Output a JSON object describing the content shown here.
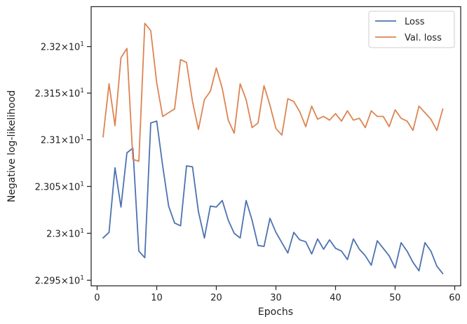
{
  "chart_data": {
    "type": "line",
    "xlabel": "Epochs",
    "ylabel": "Negative log-likelihood",
    "xlim": [
      -1,
      61
    ],
    "ylim": [
      2.2944,
      2.3243
    ],
    "x_ticks": [
      0,
      10,
      20,
      30,
      40,
      50,
      60
    ],
    "x_tick_labels": [
      "0",
      "10",
      "20",
      "30",
      "40",
      "50",
      "60"
    ],
    "y_ticks": [
      2.295,
      2.3,
      2.305,
      2.31,
      2.315,
      2.32
    ],
    "y_tick_labels": [
      {
        "mantissa": "2.295",
        "base": "10",
        "exp": "1"
      },
      {
        "mantissa": "2.3",
        "base": "10",
        "exp": "1"
      },
      {
        "mantissa": "2.305",
        "base": "10",
        "exp": "1"
      },
      {
        "mantissa": "2.31",
        "base": "10",
        "exp": "1"
      },
      {
        "mantissa": "2.315",
        "base": "10",
        "exp": "1"
      },
      {
        "mantissa": "2.32",
        "base": "10",
        "exp": "1"
      }
    ],
    "y_scale": "log",
    "grid": false,
    "legend_position": "top-right",
    "x": [
      1,
      2,
      3,
      4,
      5,
      6,
      7,
      8,
      9,
      10,
      11,
      12,
      13,
      14,
      15,
      16,
      17,
      18,
      19,
      20,
      21,
      22,
      23,
      24,
      25,
      26,
      27,
      28,
      29,
      30,
      31,
      32,
      33,
      34,
      35,
      36,
      37,
      38,
      39,
      40,
      41,
      42,
      43,
      44,
      45,
      46,
      47,
      48,
      49,
      50,
      51,
      52,
      53,
      54,
      55,
      56,
      57,
      58
    ],
    "series": [
      {
        "name": "Loss",
        "color": "#4c72b0",
        "values": [
          2.2995,
          2.3001,
          2.307,
          2.3028,
          2.3086,
          2.3091,
          2.2981,
          2.2974,
          2.3118,
          2.312,
          2.3072,
          2.3029,
          2.3011,
          2.3008,
          2.3072,
          2.3071,
          2.3023,
          2.2995,
          2.3029,
          2.3028,
          2.3035,
          2.3014,
          2.3,
          2.2995,
          2.3035,
          2.3014,
          2.2987,
          2.2986,
          2.3016,
          2.3001,
          2.299,
          2.2979,
          2.3001,
          2.2993,
          2.2991,
          2.2978,
          2.2994,
          2.2983,
          2.2993,
          2.2984,
          2.2981,
          2.2972,
          2.2994,
          2.2983,
          2.2976,
          2.2966,
          2.2992,
          2.2984,
          2.2976,
          2.2963,
          2.299,
          2.2981,
          2.2969,
          2.296,
          2.299,
          2.2981,
          2.2965,
          2.2957
        ]
      },
      {
        "name": "Val. loss",
        "color": "#dd8452",
        "values": [
          2.3103,
          2.316,
          2.3115,
          2.3188,
          2.3198,
          2.3079,
          2.3077,
          2.3225,
          2.3217,
          2.3161,
          2.3125,
          2.3129,
          2.3133,
          2.3186,
          2.3183,
          2.3141,
          2.3111,
          2.3143,
          2.3152,
          2.3177,
          2.3155,
          2.3121,
          2.3107,
          2.316,
          2.3143,
          2.3113,
          2.3118,
          2.3158,
          2.3137,
          2.3112,
          2.3105,
          2.3144,
          2.3141,
          2.313,
          2.3114,
          2.3136,
          2.3122,
          2.3125,
          2.3121,
          2.3128,
          2.312,
          2.3131,
          2.3121,
          2.3123,
          2.3113,
          2.3131,
          2.3125,
          2.3125,
          2.3114,
          2.3132,
          2.3123,
          2.312,
          2.311,
          2.3136,
          2.3129,
          2.3122,
          2.311,
          2.3133
        ]
      }
    ]
  }
}
